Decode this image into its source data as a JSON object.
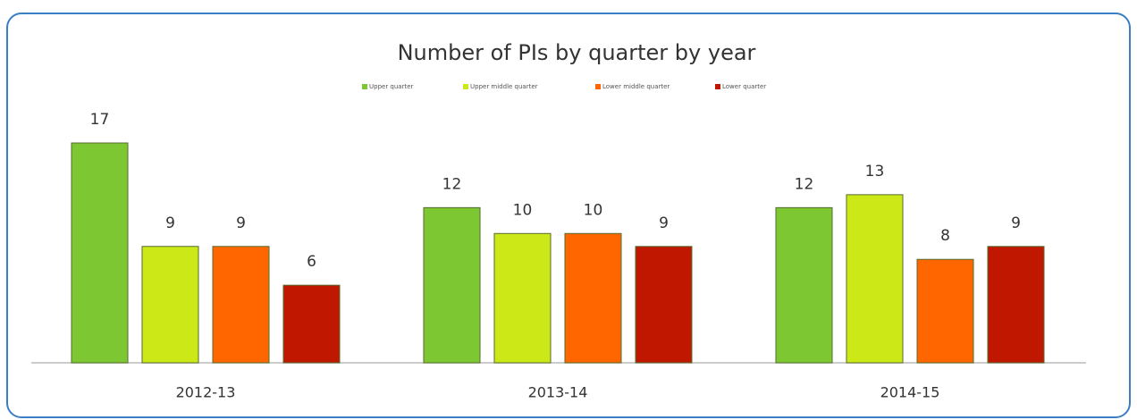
{
  "chart_data": {
    "type": "bar",
    "title": "Number of PIs by quarter by year",
    "categories": [
      "2012-13",
      "2013-14",
      "2014-15"
    ],
    "series": [
      {
        "name": "Upper quarter",
        "color": "#7dc832",
        "values": [
          17,
          12,
          12
        ]
      },
      {
        "name": "Upper middle quarter",
        "color": "#cce817",
        "values": [
          9,
          10,
          13
        ]
      },
      {
        "name": "Lower middle quarter",
        "color": "#ff6600",
        "values": [
          9,
          10,
          8
        ]
      },
      {
        "name": "Lower quarter",
        "color": "#c01800",
        "values": [
          6,
          9,
          9
        ]
      }
    ],
    "data_labels": true
  }
}
